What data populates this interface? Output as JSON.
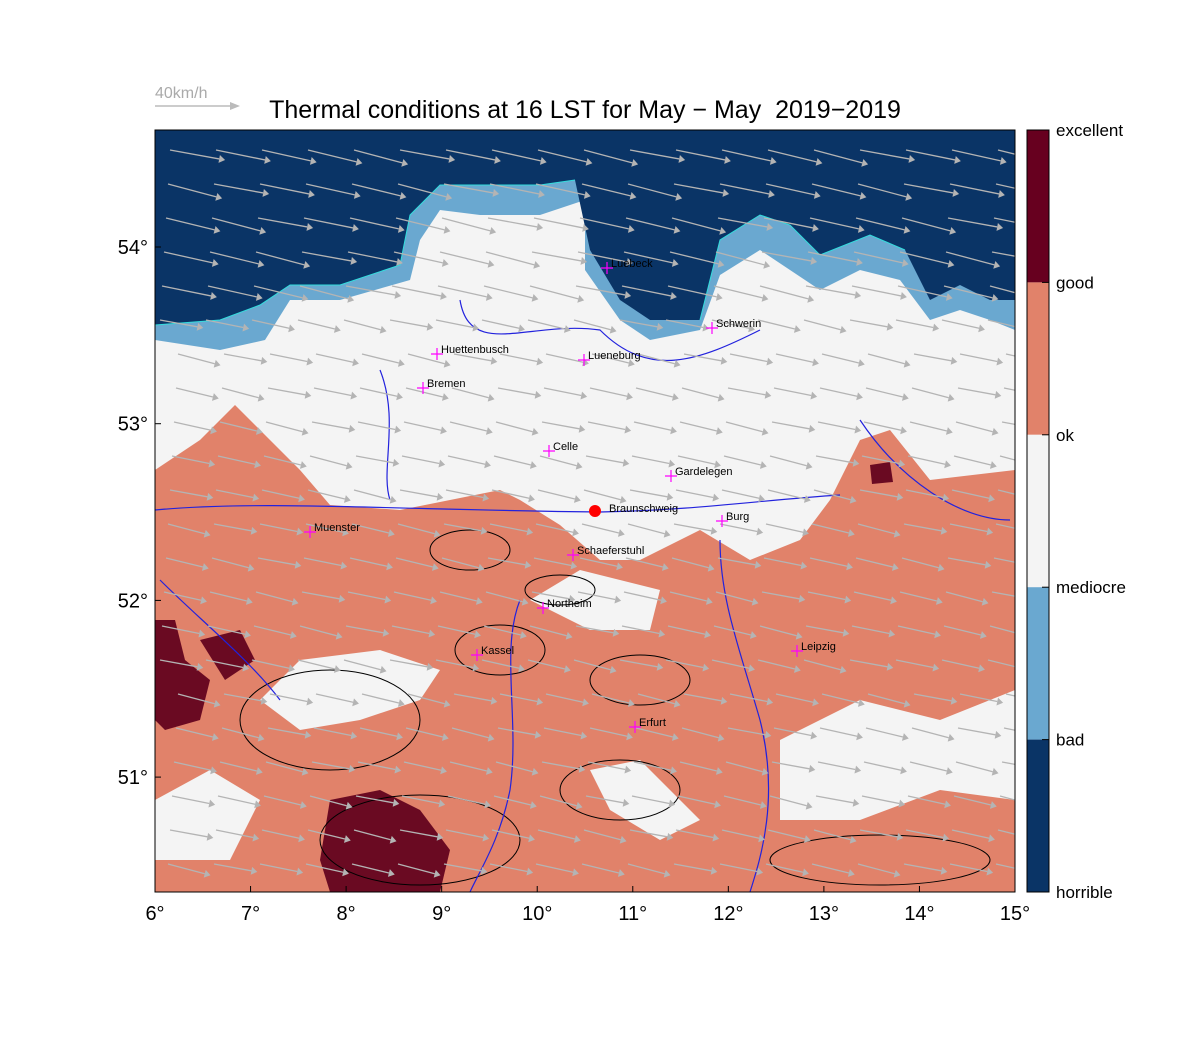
{
  "title": "Thermal conditions at 16 LST for May − May  2019−2019",
  "wind_scale": {
    "label": "40km/h"
  },
  "x_axis": {
    "ticks": [
      "6°",
      "7°",
      "8°",
      "9°",
      "10°",
      "11°",
      "12°",
      "13°",
      "14°",
      "15°"
    ]
  },
  "y_axis": {
    "ticks": [
      "54°",
      "53°",
      "52°",
      "51°"
    ]
  },
  "colorbar": {
    "labels": [
      "excellent",
      "good",
      "ok",
      "mediocre",
      "bad",
      "horrible"
    ]
  },
  "cities": [
    {
      "name": "Luebeck"
    },
    {
      "name": "Schwerin"
    },
    {
      "name": "Huettenbusch"
    },
    {
      "name": "Lueneburg"
    },
    {
      "name": "Bremen"
    },
    {
      "name": "Celle"
    },
    {
      "name": "Gardelegen"
    },
    {
      "name": "Braunschweig"
    },
    {
      "name": "Burg"
    },
    {
      "name": "Muenster"
    },
    {
      "name": "Schaeferstuhl"
    },
    {
      "name": "Northeim"
    },
    {
      "name": "Kassel"
    },
    {
      "name": "Leipzig"
    },
    {
      "name": "Erfurt"
    }
  ]
}
